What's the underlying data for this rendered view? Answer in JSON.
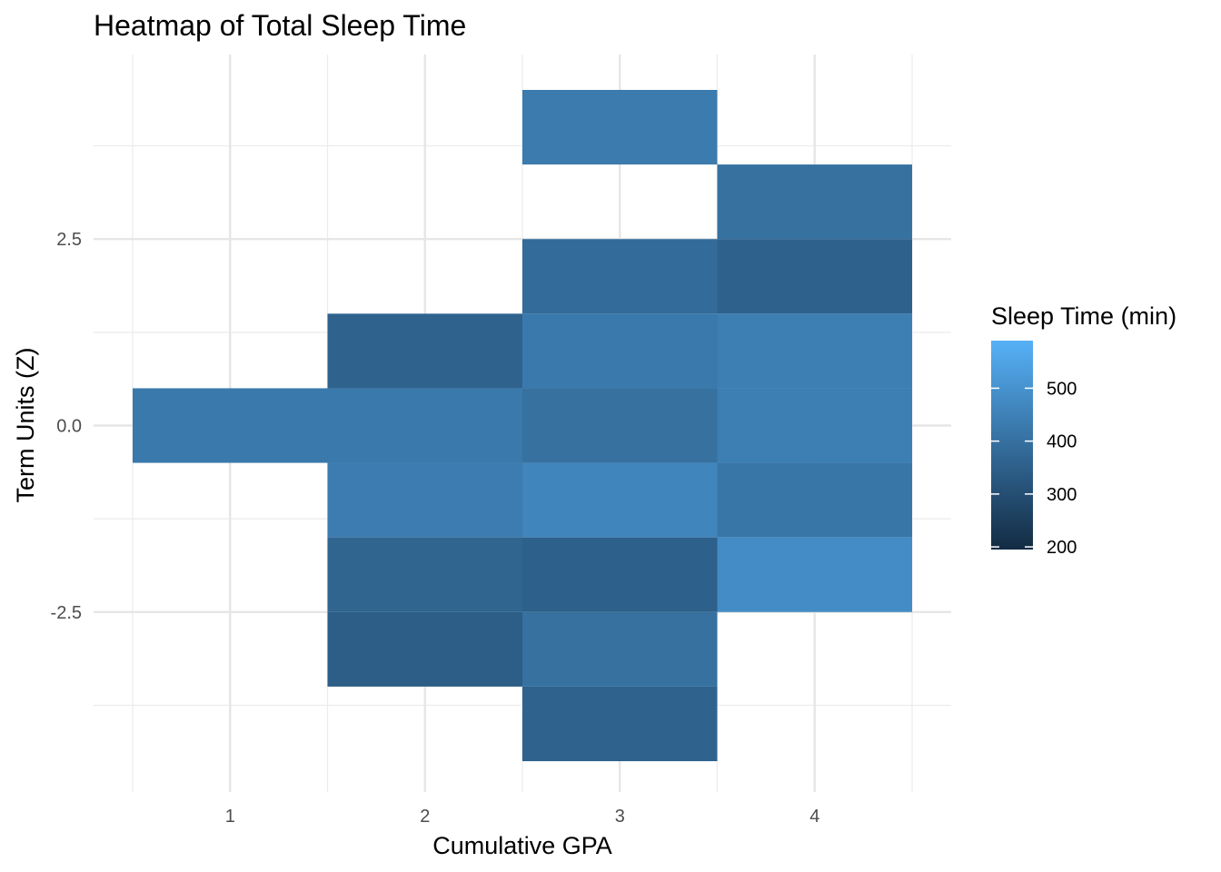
{
  "chart_data": {
    "type": "heatmap",
    "title": "Heatmap of Total Sleep Time",
    "xlabel": "Cumulative GPA",
    "ylabel": "Term Units (Z)",
    "x_ticks": [
      "1",
      "2",
      "3",
      "4"
    ],
    "x_tick_values": [
      1,
      2,
      3,
      4
    ],
    "y_ticks": [
      "-2.5",
      "0.0",
      "2.5"
    ],
    "y_tick_values": [
      -2.5,
      0.0,
      2.5
    ],
    "xlim": [
      0.5,
      4.5
    ],
    "ylim": [
      -4.5,
      4.5
    ],
    "tile_size": {
      "x": 1,
      "y": 1
    },
    "grid": true,
    "legend": {
      "title": "Sleep Time (min)",
      "position": "right",
      "breaks": [
        200,
        300,
        400,
        500
      ],
      "labels": [
        "200",
        "300",
        "400",
        "500"
      ],
      "range": [
        195,
        590
      ],
      "low_color": "#132B43",
      "high_color": "#56B1F7"
    },
    "tiles": [
      {
        "x": 1,
        "y": 0,
        "value": 425
      },
      {
        "x": 2,
        "y": 1,
        "value": 360
      },
      {
        "x": 2,
        "y": 0,
        "value": 425
      },
      {
        "x": 2,
        "y": -1,
        "value": 435
      },
      {
        "x": 2,
        "y": -2,
        "value": 365
      },
      {
        "x": 2,
        "y": -3,
        "value": 345
      },
      {
        "x": 3,
        "y": 4,
        "value": 430
      },
      {
        "x": 3,
        "y": 2,
        "value": 385
      },
      {
        "x": 3,
        "y": 1,
        "value": 425
      },
      {
        "x": 3,
        "y": 0,
        "value": 400
      },
      {
        "x": 3,
        "y": -1,
        "value": 460
      },
      {
        "x": 3,
        "y": -2,
        "value": 350
      },
      {
        "x": 3,
        "y": -3,
        "value": 400
      },
      {
        "x": 3,
        "y": -4,
        "value": 360
      },
      {
        "x": 4,
        "y": 3,
        "value": 400
      },
      {
        "x": 4,
        "y": 2,
        "value": 355
      },
      {
        "x": 4,
        "y": 1,
        "value": 440
      },
      {
        "x": 4,
        "y": 0,
        "value": 440
      },
      {
        "x": 4,
        "y": -1,
        "value": 415
      },
      {
        "x": 4,
        "y": -2,
        "value": 480
      }
    ]
  }
}
